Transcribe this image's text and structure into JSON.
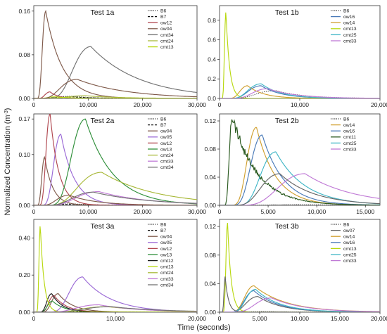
{
  "figure": {
    "ylabel_main": "Normalized Concentration (m",
    "ylabel_sup": "-3",
    "ylabel_close": ")",
    "xlabel": "Time (seconds)"
  },
  "colors": {
    "B6": "#333333",
    "B7": "#111111",
    "ow04": "#7f5a4a",
    "ow05": "#9b6ad6",
    "ow07": "#666666",
    "ow12": "#b0474f",
    "ow13": "#2f8f3a",
    "ow14": "#d0a030",
    "ow16": "#4a7ab8",
    "cmt11": "#2a5a1f",
    "cmt12": "#1a1a1a",
    "cmt13": "#b8d80f",
    "cmt24": "#a9b93a",
    "cmt25": "#40b6c6",
    "cmt33": "#c07ad6",
    "cmt34": "#727272"
  },
  "chart_data": [
    {
      "id": "test-1a",
      "type": "line",
      "title": "Test 1a",
      "xlim": [
        0,
        30000
      ],
      "ylim": [
        0,
        0.17
      ],
      "xticks": [
        0,
        10000,
        20000,
        30000
      ],
      "xtick_labels": [
        "0",
        "10,000",
        "20,000",
        "30,000"
      ],
      "yticks": [
        0,
        0.08,
        0.16
      ],
      "ytick_labels": [
        "0.00",
        "0.08",
        "0.16"
      ],
      "series": [
        {
          "name": "B6",
          "style": "dotted",
          "peak_t": 7000,
          "peak": 0.004,
          "rise": 0.5,
          "tail": 4000
        },
        {
          "name": "B7",
          "style": "dashed",
          "peak_t": 7000,
          "peak": 0.003,
          "rise": 0.5,
          "tail": 4000
        },
        {
          "name": "ow12",
          "peak_t": 3000,
          "peak": 0.012,
          "rise": 0.35,
          "tail": 1500
        },
        {
          "name": "ow04",
          "peak_t": 2200,
          "peak": 0.16,
          "rise": 0.32,
          "tail": 3000
        },
        {
          "name": "cmt34",
          "peak_t": 10500,
          "peak": 0.095,
          "rise": 0.35,
          "tail": 9000
        },
        {
          "name": "cmt24",
          "peak_t": 9500,
          "peak": 0.005,
          "rise": 0.4,
          "tail": 6000
        },
        {
          "name": "cmt13",
          "peak_t": 4000,
          "peak": 0.003,
          "rise": 0.4,
          "tail": 3000
        },
        {
          "name": "ow04",
          "peak_t": 8000,
          "peak": 0.035,
          "rise": 0.45,
          "tail": 9000,
          "legend": false
        }
      ]
    },
    {
      "id": "test-1b",
      "type": "line",
      "title": "Test 1b",
      "xlim": [
        0,
        20000
      ],
      "ylim": [
        0,
        0.95
      ],
      "xticks": [
        0,
        10000,
        20000
      ],
      "xtick_labels": [
        "0",
        "10,000",
        "20,000"
      ],
      "yticks": [
        0,
        0.2,
        0.4,
        0.6,
        0.8
      ],
      "ytick_labels": [
        "0.0",
        "0.2",
        "0.4",
        "0.6",
        "0.8"
      ],
      "series": [
        {
          "name": "B6",
          "style": "dotted",
          "peak_t": 7000,
          "peak": 0.08,
          "rise": 0.4,
          "tail": 3500
        },
        {
          "name": "ow16",
          "peak_t": 5200,
          "peak": 0.13,
          "rise": 0.35,
          "tail": 2500
        },
        {
          "name": "ow14",
          "peak_t": 3500,
          "peak": 0.13,
          "rise": 0.3,
          "tail": 2000
        },
        {
          "name": "cmt13",
          "peak_t": 800,
          "peak": 0.89,
          "rise": 0.25,
          "tail": 450
        },
        {
          "name": "cmt25",
          "peak_t": 5200,
          "peak": 0.15,
          "rise": 0.35,
          "tail": 2500
        },
        {
          "name": "cmt33",
          "peak_t": 6000,
          "peak": 0.1,
          "rise": 0.35,
          "tail": 3500
        }
      ]
    },
    {
      "id": "test-2a",
      "type": "line",
      "title": "Test 2a",
      "xlim": [
        0,
        30000
      ],
      "ylim": [
        0,
        0.18
      ],
      "xticks": [
        0,
        10000,
        20000,
        30000
      ],
      "xtick_labels": [
        "0",
        "10,000",
        "20,000",
        "30,000"
      ],
      "yticks": [
        0,
        0.1,
        0.17
      ],
      "ytick_labels": [
        "0.00",
        "0.10",
        "0.17"
      ],
      "series": [
        {
          "name": "B6",
          "style": "dotted",
          "peak_t": 7000,
          "peak": 0.003,
          "rise": 0.4,
          "tail": 5000
        },
        {
          "name": "B7",
          "style": "dashed",
          "peak_t": 7000,
          "peak": 0.002,
          "rise": 0.4,
          "tail": 5000
        },
        {
          "name": "ow04",
          "peak_t": 2000,
          "peak": 0.095,
          "rise": 0.3,
          "tail": 1500
        },
        {
          "name": "ow05",
          "peak_t": 5000,
          "peak": 0.14,
          "rise": 0.3,
          "tail": 2500
        },
        {
          "name": "ow12",
          "peak_t": 3000,
          "peak": 0.18,
          "rise": 0.28,
          "tail": 1600
        },
        {
          "name": "ow13",
          "peak_t": 9500,
          "peak": 0.17,
          "rise": 0.3,
          "tail": 5000
        },
        {
          "name": "cmt24",
          "peak_t": 12500,
          "peak": 0.065,
          "rise": 0.4,
          "tail": 10000
        },
        {
          "name": "cmt33",
          "peak_t": 12000,
          "peak": 0.027,
          "rise": 0.4,
          "tail": 9000
        },
        {
          "name": "cmt34",
          "peak_t": 11000,
          "peak": 0.026,
          "rise": 0.4,
          "tail": 10000
        },
        {
          "name": "ow04",
          "peak_t": 6500,
          "peak": 0.02,
          "rise": 0.4,
          "tail": 5000,
          "legend": false
        }
      ]
    },
    {
      "id": "test-2b",
      "type": "line",
      "title": "Test 2b",
      "xlim": [
        0,
        16500
      ],
      "ylim": [
        0,
        0.13
      ],
      "xticks": [
        0,
        5000,
        10000,
        15000
      ],
      "xtick_labels": [
        "0",
        "5,000",
        "10,000",
        "15,000"
      ],
      "yticks": [
        0,
        0.04,
        0.08,
        0.12
      ],
      "ytick_labels": [
        "0.00",
        "0.04",
        "0.08",
        "0.12"
      ],
      "series": [
        {
          "name": "B6",
          "style": "dotted",
          "peak_t": 8000,
          "peak": 0.001,
          "rise": 0.4,
          "tail": 5000
        },
        {
          "name": "ow14",
          "peak_t": 3800,
          "peak": 0.111,
          "rise": 0.28,
          "tail": 2000
        },
        {
          "name": "ow16",
          "peak_t": 4400,
          "peak": 0.1,
          "rise": 0.3,
          "tail": 2200
        },
        {
          "name": "cmt11",
          "peak_t": 1300,
          "peak": 0.128,
          "rise": 0.25,
          "tail": 2500,
          "noisy": true
        },
        {
          "name": "cmt25",
          "peak_t": 5800,
          "peak": 0.076,
          "rise": 0.3,
          "tail": 3000
        },
        {
          "name": "cmt33",
          "peak_t": 8800,
          "peak": 0.045,
          "rise": 0.35,
          "tail": 5000
        },
        {
          "name": "ow07",
          "peak_t": 6200,
          "peak": 0.045,
          "rise": 0.35,
          "tail": 3500,
          "legend": false
        }
      ]
    },
    {
      "id": "test-3a",
      "type": "line",
      "title": "Test 3a",
      "xlim": [
        0,
        20000
      ],
      "ylim": [
        0,
        0.5
      ],
      "xticks": [
        0,
        10000,
        20000
      ],
      "xtick_labels": [
        "0",
        "10,000",
        "20,000"
      ],
      "yticks": [
        0,
        0.2,
        0.4
      ],
      "ytick_labels": [
        "0.00",
        "0.20",
        "0.40"
      ],
      "series": [
        {
          "name": "B6",
          "style": "dotted",
          "peak_t": 6000,
          "peak": 0.003,
          "rise": 0.4,
          "tail": 4000
        },
        {
          "name": "B7",
          "style": "dashed",
          "peak_t": 6000,
          "peak": 0.003,
          "rise": 0.4,
          "tail": 4000
        },
        {
          "name": "ow04",
          "peak_t": 3000,
          "peak": 0.1,
          "rise": 0.3,
          "tail": 1800
        },
        {
          "name": "ow05",
          "peak_t": 6000,
          "peak": 0.19,
          "rise": 0.3,
          "tail": 3500
        },
        {
          "name": "ow12",
          "peak_t": 2500,
          "peak": 0.09,
          "rise": 0.3,
          "tail": 1500
        },
        {
          "name": "ow13",
          "peak_t": 2300,
          "peak": 0.06,
          "rise": 0.3,
          "tail": 1500
        },
        {
          "name": "cmt12",
          "peak_t": 2200,
          "peak": 0.1,
          "rise": 0.3,
          "tail": 1300
        },
        {
          "name": "cmt13",
          "peak_t": 800,
          "peak": 0.47,
          "rise": 0.22,
          "tail": 450
        },
        {
          "name": "cmt24",
          "peak_t": 9000,
          "peak": 0.03,
          "rise": 0.4,
          "tail": 6000
        },
        {
          "name": "cmt33",
          "peak_t": 8000,
          "peak": 0.04,
          "rise": 0.4,
          "tail": 5000
        },
        {
          "name": "cmt34",
          "peak_t": 9500,
          "peak": 0.03,
          "rise": 0.4,
          "tail": 6000
        }
      ]
    },
    {
      "id": "test-3b",
      "type": "line",
      "title": "Test 3b",
      "xlim": [
        0,
        20000
      ],
      "ylim": [
        0,
        0.13
      ],
      "xticks": [
        0,
        5000,
        10000,
        15000,
        20000
      ],
      "xtick_labels": [
        "0",
        "5,000",
        "10,000",
        "15,000",
        "20,000"
      ],
      "yticks": [
        0,
        0.04,
        0.08,
        0.12
      ],
      "ytick_labels": [
        "0.00",
        "0.04",
        "0.08",
        "0.12"
      ],
      "series": [
        {
          "name": "B6",
          "style": "dotted",
          "peak_t": 6000,
          "peak": 0.001,
          "rise": 0.4,
          "tail": 4000
        },
        {
          "name": "ow07",
          "peak_t": 4800,
          "peak": 0.022,
          "rise": 0.35,
          "tail": 3000
        },
        {
          "name": "ow14",
          "peak_t": 4300,
          "peak": 0.037,
          "rise": 0.3,
          "tail": 4000
        },
        {
          "name": "ow16",
          "peak_t": 4300,
          "peak": 0.03,
          "rise": 0.3,
          "tail": 3000
        },
        {
          "name": "cmt13",
          "peak_t": 1000,
          "peak": 0.125,
          "rise": 0.22,
          "tail": 450
        },
        {
          "name": "cmt25",
          "peak_t": 4500,
          "peak": 0.032,
          "rise": 0.3,
          "tail": 3000
        },
        {
          "name": "cmt33",
          "peak_t": 6500,
          "peak": 0.02,
          "rise": 0.35,
          "tail": 4000
        },
        {
          "name": "ow07",
          "peak_t": 700,
          "peak": 0.05,
          "rise": 0.22,
          "tail": 400,
          "legend": false
        }
      ]
    }
  ]
}
